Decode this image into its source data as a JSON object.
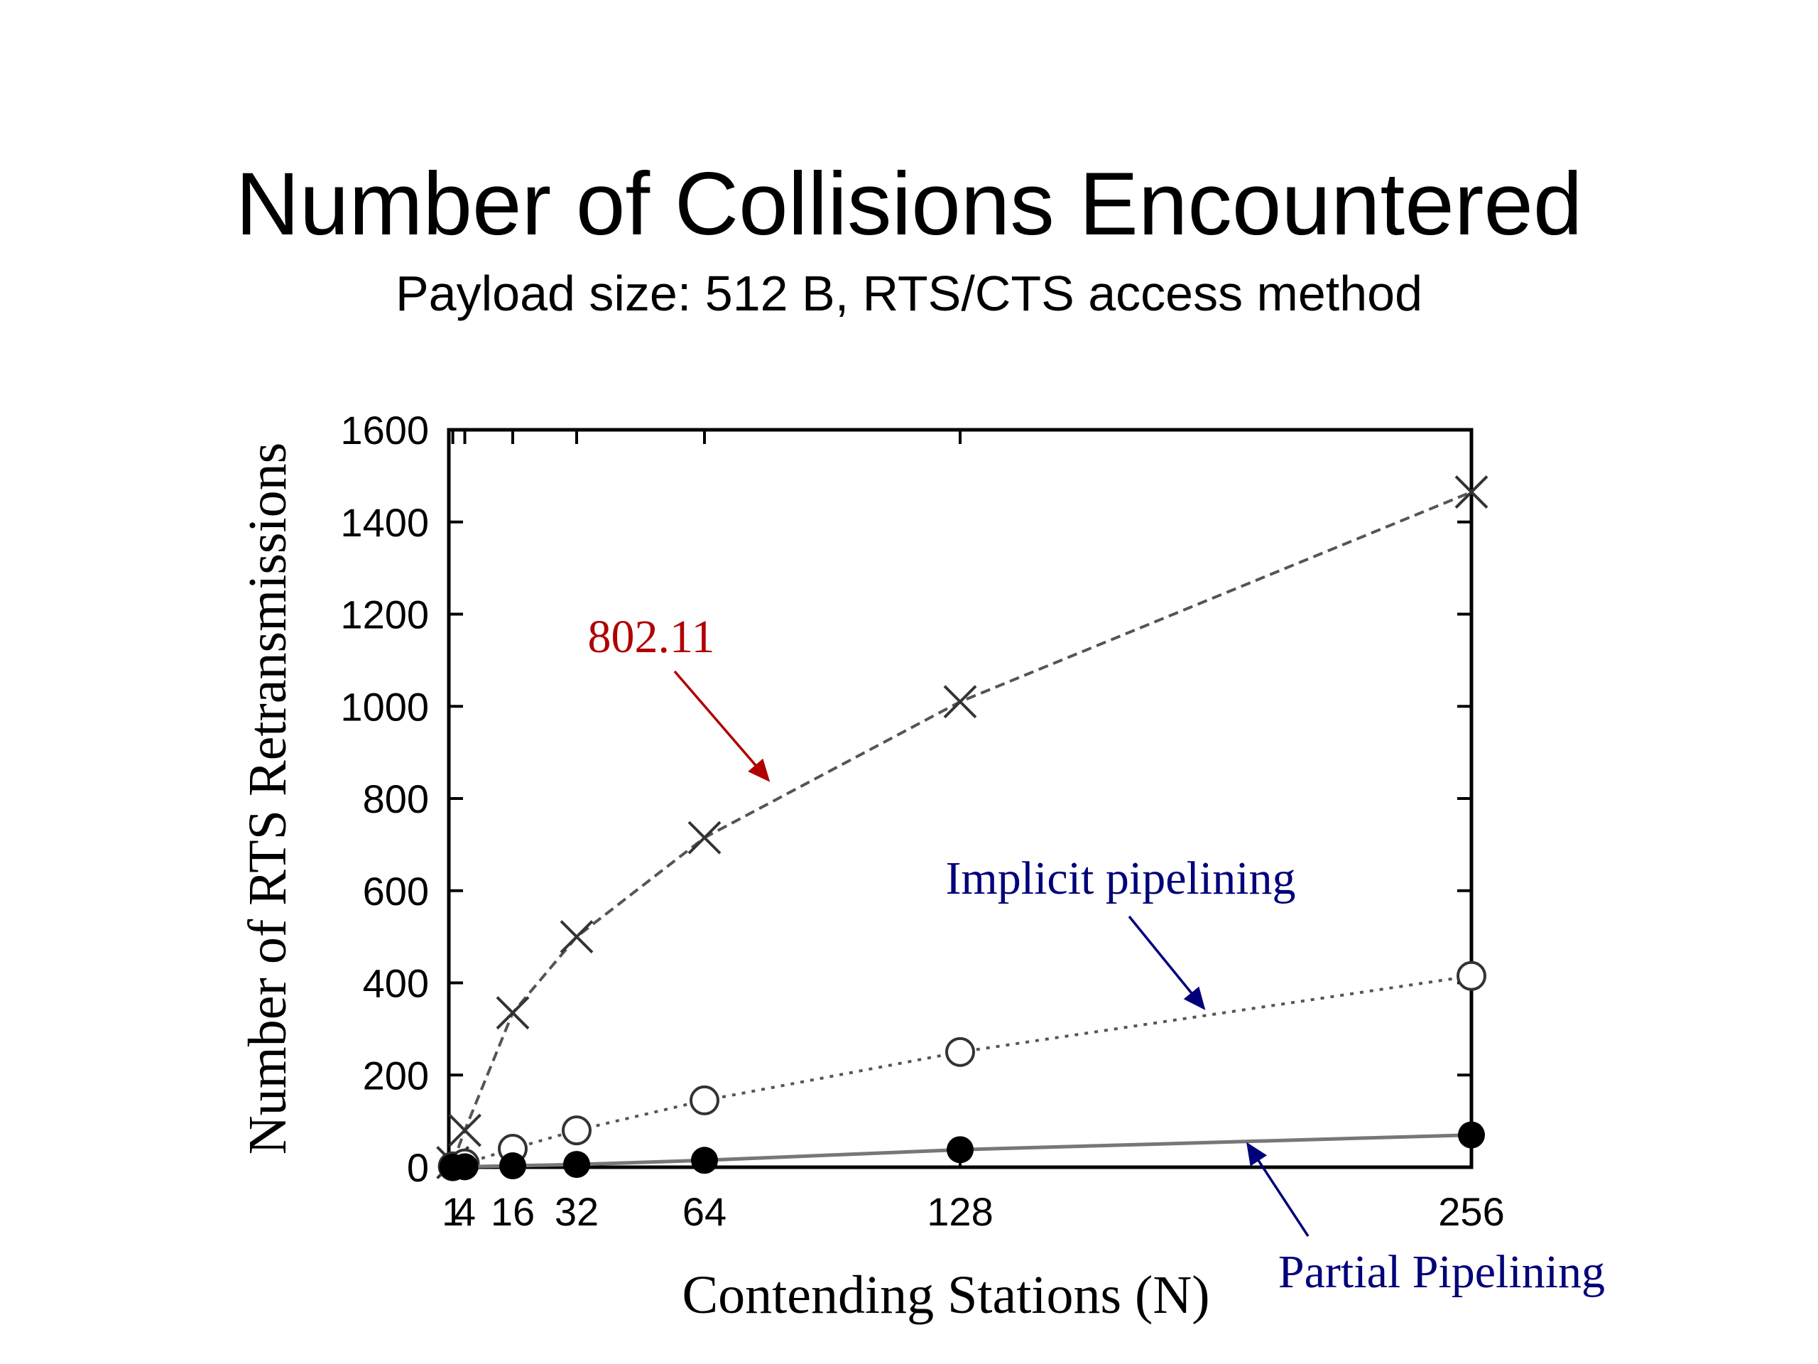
{
  "slide": {
    "title": "Number of Collisions Encountered",
    "subtitle": "Payload size: 512 B, RTS/CTS access method"
  },
  "chart_data": {
    "type": "line",
    "title": "Number of Collisions Encountered",
    "subtitle": "Payload size: 512 B, RTS/CTS access method",
    "xlabel": "Contending Stations (N)",
    "ylabel": "Number of RTS Retransmissions",
    "xlim": [
      0,
      256
    ],
    "ylim": [
      0,
      1600
    ],
    "x_ticks": [
      1,
      4,
      16,
      32,
      64,
      128,
      256
    ],
    "x_tick_labels": [
      "1",
      "4",
      "16",
      "32",
      "64",
      "128",
      "256"
    ],
    "y_ticks": [
      0,
      200,
      400,
      600,
      800,
      1000,
      1200,
      1400,
      1600
    ],
    "grid": false,
    "legend": "annotations",
    "series": [
      {
        "name": "802.11",
        "marker": "x",
        "dash": "dashed",
        "color": "#555555",
        "x": [
          1,
          4,
          16,
          32,
          64,
          128,
          256
        ],
        "y": [
          10,
          80,
          335,
          500,
          715,
          1010,
          1465
        ]
      },
      {
        "name": "Implicit pipelining",
        "marker": "open-circle",
        "dash": "dotted",
        "color": "#555555",
        "x": [
          1,
          4,
          16,
          32,
          64,
          128,
          256
        ],
        "y": [
          2,
          8,
          40,
          80,
          145,
          250,
          415
        ]
      },
      {
        "name": "Partial Pipelining",
        "marker": "filled-circle",
        "dash": "solid",
        "color": "#777777",
        "x": [
          1,
          4,
          16,
          32,
          64,
          128,
          256
        ],
        "y": [
          0,
          1,
          3,
          6,
          15,
          38,
          70
        ]
      }
    ],
    "annotations": [
      {
        "text": "802.11",
        "color": "#b00000",
        "points_to_x": 80,
        "points_to_y": 840
      },
      {
        "text": "Implicit pipelining",
        "color": "#00007a",
        "points_to_x": 189,
        "points_to_y": 345
      },
      {
        "text": "Partial Pipelining",
        "color": "#00007a",
        "points_to_x": 200,
        "points_to_y": 50
      }
    ]
  }
}
